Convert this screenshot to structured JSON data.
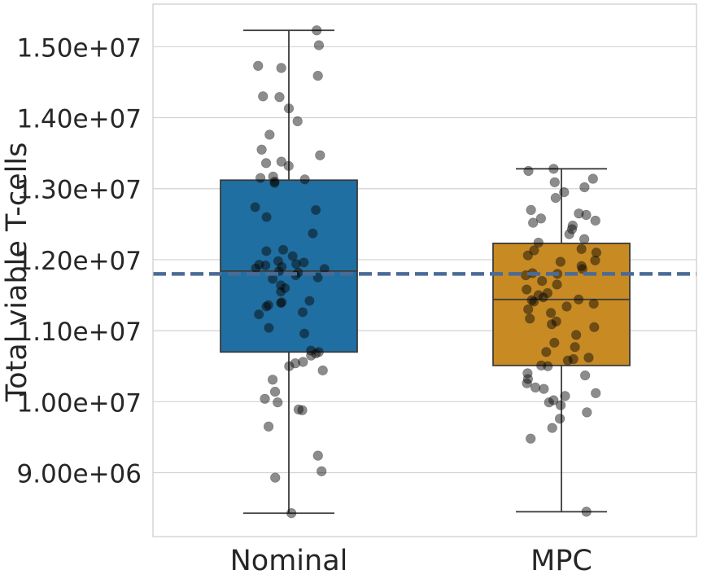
{
  "chart_data": {
    "type": "box",
    "title": "",
    "xlabel": "",
    "ylabel": "Total viable T-cells",
    "ylim": [
      8100000,
      15600000
    ],
    "yticks": [
      9000000,
      10000000,
      11000000,
      12000000,
      13000000,
      14000000,
      15000000
    ],
    "ytick_labels": [
      "9.00e+06",
      "1.00e+07",
      "1.10e+07",
      "1.20e+07",
      "1.30e+07",
      "1.40e+07",
      "1.50e+07"
    ],
    "grid": "horizontal",
    "categories": [
      "Nominal",
      "MPC"
    ],
    "reference_line": {
      "value": 11800000,
      "color": "#4a6b96",
      "style": "dashed"
    },
    "boxes": [
      {
        "category": "Nominal",
        "color": "#1f6fa3",
        "whisker_low": 8430000,
        "q1": 10700000,
        "median": 11840000,
        "q3": 13120000,
        "whisker_high": 15230000
      },
      {
        "category": "MPC",
        "color": "#c88a22",
        "whisker_low": 8450000,
        "q1": 10510000,
        "median": 11440000,
        "q3": 12230000,
        "whisker_high": 13280000
      }
    ],
    "points": [
      {
        "category": "Nominal",
        "values": [
          15230000,
          15020000,
          14730000,
          14700000,
          14590000,
          14300000,
          14290000,
          14130000,
          13950000,
          13760000,
          13550000,
          13470000,
          13380000,
          13360000,
          13320000,
          13170000,
          13150000,
          13130000,
          13100000,
          13080000,
          12740000,
          12700000,
          12600000,
          12370000,
          12140000,
          12120000,
          12050000,
          11980000,
          11960000,
          11940000,
          11930000,
          11920000,
          11900000,
          11880000,
          11870000,
          11840000,
          11820000,
          11780000,
          11750000,
          11730000,
          11640000,
          11600000,
          11550000,
          11420000,
          11400000,
          11390000,
          11360000,
          11340000,
          11260000,
          11230000,
          11040000,
          10960000,
          10720000,
          10700000,
          10680000,
          10650000,
          10560000,
          10540000,
          10500000,
          10440000,
          10310000,
          10140000,
          10040000,
          9990000,
          9890000,
          9880000,
          9650000,
          9240000,
          9020000,
          8930000,
          8430000
        ]
      },
      {
        "category": "MPC",
        "values": [
          13280000,
          13250000,
          13140000,
          13090000,
          13020000,
          12950000,
          12870000,
          12700000,
          12650000,
          12630000,
          12580000,
          12550000,
          12520000,
          12480000,
          12430000,
          12360000,
          12290000,
          12240000,
          12150000,
          12130000,
          12100000,
          12060000,
          11990000,
          11970000,
          11910000,
          11870000,
          11810000,
          11800000,
          11780000,
          11700000,
          11650000,
          11580000,
          11530000,
          11500000,
          11470000,
          11440000,
          11430000,
          11410000,
          11380000,
          11340000,
          11300000,
          11250000,
          11170000,
          11130000,
          11090000,
          11050000,
          10940000,
          10830000,
          10770000,
          10700000,
          10620000,
          10600000,
          10580000,
          10510000,
          10500000,
          10400000,
          10370000,
          10320000,
          10260000,
          10200000,
          10180000,
          10120000,
          10080000,
          10020000,
          9990000,
          9950000,
          9850000,
          9760000,
          9630000,
          9480000,
          8450000
        ]
      }
    ]
  }
}
